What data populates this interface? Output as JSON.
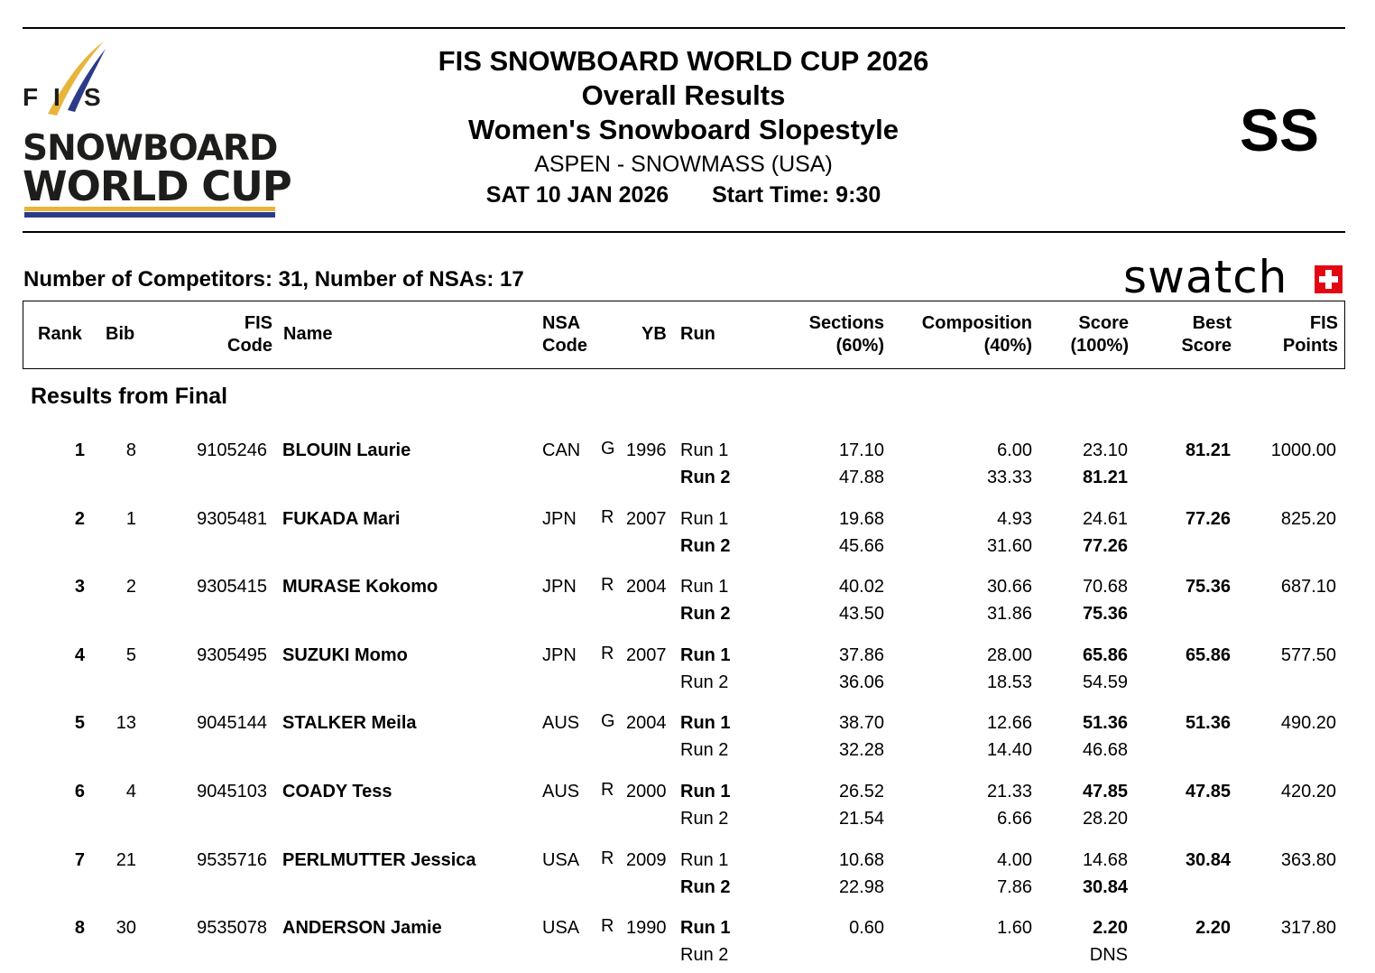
{
  "header": {
    "logo": {
      "fis_letters": [
        "F",
        "I",
        "S"
      ],
      "line1": "SNOWBOARD",
      "line2": "WORLD CUP",
      "colors": {
        "gold": "#e8b43a",
        "navy": "#2c3a8a",
        "text": "#1d1d1b"
      }
    },
    "title": "FIS SNOWBOARD WORLD CUP 2026",
    "subtitle": "Overall Results",
    "event": "Women's Snowboard Slopestyle",
    "venue": "ASPEN - SNOWMASS (USA)",
    "date": "SAT 10 JAN 2026",
    "start_time": "Start Time: 9:30",
    "discipline_code": "SS"
  },
  "summary": {
    "competitors": "Number of Competitors: 31, Number of NSAs: 17",
    "sponsor": "swatch",
    "sponsor_color": "#e30613"
  },
  "table": {
    "headers": {
      "rank": "Rank",
      "bib": "Bib",
      "fis_code": [
        "FIS",
        "Code"
      ],
      "name": "Name",
      "nsa_code": [
        "NSA",
        "Code"
      ],
      "yb": "YB",
      "run": "Run",
      "sections": [
        "Sections",
        "(60%)"
      ],
      "composition": [
        "Composition",
        "(40%)"
      ],
      "score": [
        "Score",
        "(100%)"
      ],
      "best_score": [
        "Best",
        "Score"
      ],
      "fis_points": [
        "FIS",
        "Points"
      ]
    },
    "section_title": "Results from Final",
    "rows": [
      {
        "rank": "1",
        "bib": "8",
        "fis_code": "9105246",
        "name": "BLOUIN Laurie",
        "nsa": "CAN",
        "gender": "G",
        "yb": "1996",
        "runs": [
          {
            "run": "Run 1",
            "sections": "17.10",
            "composition": "6.00",
            "score": "23.10",
            "best": false
          },
          {
            "run": "Run 2",
            "sections": "47.88",
            "composition": "33.33",
            "score": "81.21",
            "best": true
          }
        ],
        "best_score": "81.21",
        "fis_points": "1000.00"
      },
      {
        "rank": "2",
        "bib": "1",
        "fis_code": "9305481",
        "name": "FUKADA Mari",
        "nsa": "JPN",
        "gender": "R",
        "yb": "2007",
        "runs": [
          {
            "run": "Run 1",
            "sections": "19.68",
            "composition": "4.93",
            "score": "24.61",
            "best": false
          },
          {
            "run": "Run 2",
            "sections": "45.66",
            "composition": "31.60",
            "score": "77.26",
            "best": true
          }
        ],
        "best_score": "77.26",
        "fis_points": "825.20"
      },
      {
        "rank": "3",
        "bib": "2",
        "fis_code": "9305415",
        "name": "MURASE Kokomo",
        "nsa": "JPN",
        "gender": "R",
        "yb": "2004",
        "runs": [
          {
            "run": "Run 1",
            "sections": "40.02",
            "composition": "30.66",
            "score": "70.68",
            "best": false
          },
          {
            "run": "Run 2",
            "sections": "43.50",
            "composition": "31.86",
            "score": "75.36",
            "best": true
          }
        ],
        "best_score": "75.36",
        "fis_points": "687.10"
      },
      {
        "rank": "4",
        "bib": "5",
        "fis_code": "9305495",
        "name": "SUZUKI Momo",
        "nsa": "JPN",
        "gender": "R",
        "yb": "2007",
        "runs": [
          {
            "run": "Run 1",
            "sections": "37.86",
            "composition": "28.00",
            "score": "65.86",
            "best": true
          },
          {
            "run": "Run 2",
            "sections": "36.06",
            "composition": "18.53",
            "score": "54.59",
            "best": false
          }
        ],
        "best_score": "65.86",
        "fis_points": "577.50"
      },
      {
        "rank": "5",
        "bib": "13",
        "fis_code": "9045144",
        "name": "STALKER Meila",
        "nsa": "AUS",
        "gender": "G",
        "yb": "2004",
        "runs": [
          {
            "run": "Run 1",
            "sections": "38.70",
            "composition": "12.66",
            "score": "51.36",
            "best": true
          },
          {
            "run": "Run 2",
            "sections": "32.28",
            "composition": "14.40",
            "score": "46.68",
            "best": false
          }
        ],
        "best_score": "51.36",
        "fis_points": "490.20"
      },
      {
        "rank": "6",
        "bib": "4",
        "fis_code": "9045103",
        "name": "COADY Tess",
        "nsa": "AUS",
        "gender": "R",
        "yb": "2000",
        "runs": [
          {
            "run": "Run 1",
            "sections": "26.52",
            "composition": "21.33",
            "score": "47.85",
            "best": true
          },
          {
            "run": "Run 2",
            "sections": "21.54",
            "composition": "6.66",
            "score": "28.20",
            "best": false
          }
        ],
        "best_score": "47.85",
        "fis_points": "420.20"
      },
      {
        "rank": "7",
        "bib": "21",
        "fis_code": "9535716",
        "name": "PERLMUTTER Jessica",
        "nsa": "USA",
        "gender": "R",
        "yb": "2009",
        "runs": [
          {
            "run": "Run 1",
            "sections": "10.68",
            "composition": "4.00",
            "score": "14.68",
            "best": false
          },
          {
            "run": "Run 2",
            "sections": "22.98",
            "composition": "7.86",
            "score": "30.84",
            "best": true
          }
        ],
        "best_score": "30.84",
        "fis_points": "363.80"
      },
      {
        "rank": "8",
        "bib": "30",
        "fis_code": "9535078",
        "name": "ANDERSON Jamie",
        "nsa": "USA",
        "gender": "R",
        "yb": "1990",
        "runs": [
          {
            "run": "Run 1",
            "sections": "0.60",
            "composition": "1.60",
            "score": "2.20",
            "best": true
          },
          {
            "run": "Run 2",
            "sections": "",
            "composition": "",
            "score": "DNS",
            "best": false
          }
        ],
        "best_score": "2.20",
        "fis_points": "317.80"
      }
    ]
  }
}
